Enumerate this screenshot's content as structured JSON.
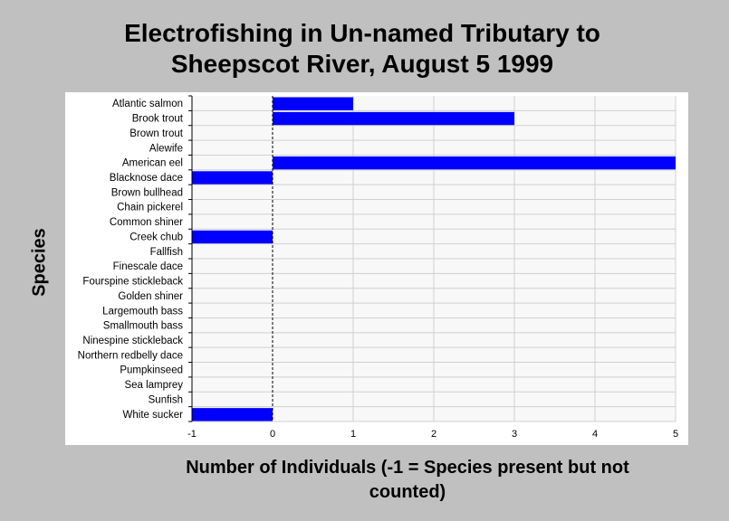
{
  "chart_data": {
    "type": "bar",
    "orientation": "horizontal",
    "title_lines": [
      "Electrofishing in Un-named Tributary to",
      "Sheepscot River, August 5 1999"
    ],
    "xlabel_lines": [
      "Number of Individuals (-1 = Species present but not",
      "counted)"
    ],
    "ylabel": "Species",
    "xlim": [
      -1,
      5
    ],
    "xticks": [
      -1,
      0,
      1,
      2,
      3,
      4,
      5
    ],
    "grid": true,
    "bar_color": "#0000ff",
    "categories": [
      "Atlantic salmon",
      "Brook trout",
      "Brown trout",
      "Alewife",
      "American eel",
      "Blacknose dace",
      "Brown bullhead",
      "Chain pickerel",
      "Common shiner",
      "Creek chub",
      "Fallfish",
      "Finescale dace",
      "Fourspine stickleback",
      "Golden shiner",
      "Largemouth bass",
      "Smallmouth bass",
      "Ninespine stickleback",
      "Northern redbelly dace",
      "Pumpkinseed",
      "Sea lamprey",
      "Sunfish",
      "White sucker"
    ],
    "values": [
      1,
      3,
      0,
      0,
      5,
      -1,
      0,
      0,
      0,
      -1,
      0,
      0,
      0,
      0,
      0,
      0,
      0,
      0,
      0,
      0,
      0,
      -1
    ]
  }
}
